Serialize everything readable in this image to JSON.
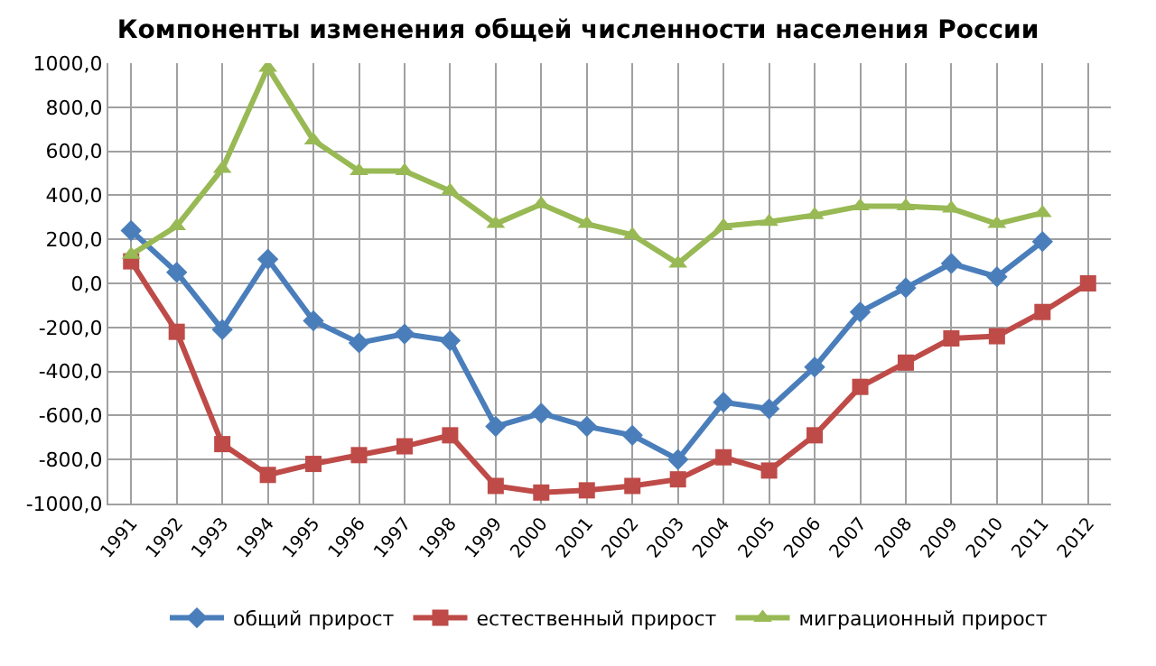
{
  "chart_data": {
    "type": "line",
    "title": "Компоненты изменения общей численности населения России",
    "categories": [
      "1991",
      "1992",
      "1993",
      "1994",
      "1995",
      "1996",
      "1997",
      "1998",
      "1999",
      "2000",
      "2001",
      "2002",
      "2003",
      "2004",
      "2005",
      "2006",
      "2007",
      "2008",
      "2009",
      "2010",
      "2011",
      "2012"
    ],
    "series": [
      {
        "name": "общий прирост",
        "color": "#4a7ebb",
        "marker": "diamond",
        "values": [
          240,
          50,
          -210,
          110,
          -170,
          -270,
          -230,
          -260,
          -650,
          -590,
          -650,
          -690,
          -800,
          -540,
          -570,
          -380,
          -130,
          -20,
          90,
          30,
          190,
          null
        ]
      },
      {
        "name": "естественный прирост",
        "color": "#be4b48",
        "marker": "square",
        "values": [
          100,
          -220,
          -730,
          -870,
          -820,
          -780,
          -740,
          -690,
          -920,
          -950,
          -940,
          -920,
          -890,
          -790,
          -850,
          -690,
          -470,
          -360,
          -250,
          -240,
          -130,
          0
        ]
      },
      {
        "name": "миграционный прирост",
        "color": "#98b954",
        "marker": "triangle",
        "values": [
          130,
          260,
          520,
          980,
          650,
          510,
          510,
          420,
          270,
          360,
          270,
          220,
          90,
          260,
          280,
          310,
          350,
          350,
          340,
          270,
          320,
          null
        ]
      }
    ],
    "ylim": [
      -1000,
      1000
    ],
    "yticks": [
      {
        "value": -1000,
        "label": "-1000,0"
      },
      {
        "value": -800,
        "label": "-800,0"
      },
      {
        "value": -600,
        "label": "-600,0"
      },
      {
        "value": -400,
        "label": "-400,0"
      },
      {
        "value": -200,
        "label": "-200,0"
      },
      {
        "value": 0,
        "label": "0,0"
      },
      {
        "value": 200,
        "label": "200,0"
      },
      {
        "value": 400,
        "label": "400,0"
      },
      {
        "value": 600,
        "label": "600,0"
      },
      {
        "value": 800,
        "label": "800,0"
      },
      {
        "value": 1000,
        "label": "1000,0"
      }
    ],
    "grid": true,
    "legend": "bottom",
    "line_style": "solid"
  }
}
